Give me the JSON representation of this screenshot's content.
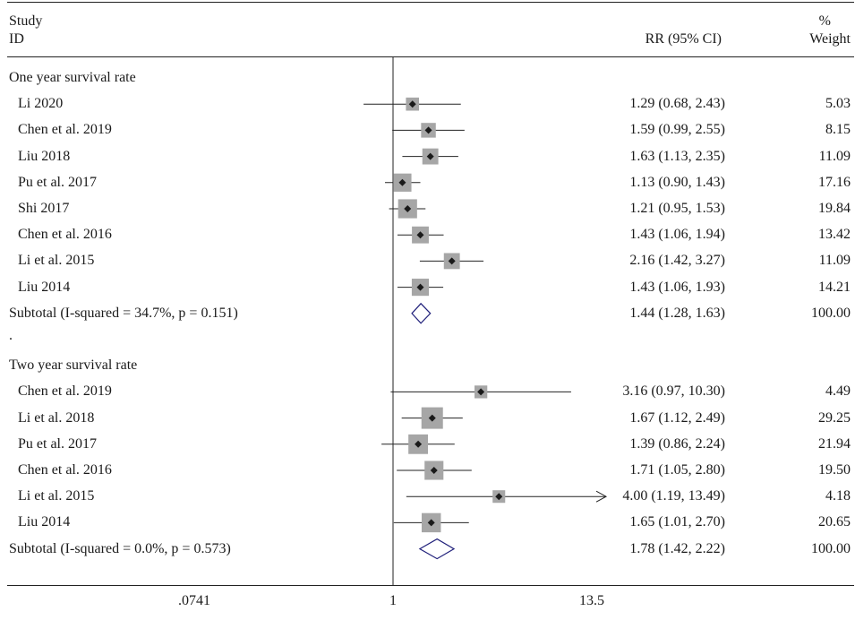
{
  "header": {
    "study_line1": "Study",
    "study_line2": "ID",
    "rr_label": "RR (95% CI)",
    "weight_line1": "%",
    "weight_line2": "Weight"
  },
  "chart_data": {
    "type": "forest",
    "scale": "log",
    "null_value": 1,
    "x_ticks": [
      {
        "value": 0.0741,
        "label": ".0741"
      },
      {
        "value": 1,
        "label": "1"
      },
      {
        "value": 13.5,
        "label": "13.5"
      }
    ],
    "rows": [
      {
        "kind": "group",
        "label": "One year survival rate"
      },
      {
        "kind": "study",
        "label": "Li 2020",
        "rr": 1.29,
        "lo": 0.68,
        "hi": 2.43,
        "rr_text": "1.29 (0.68, 2.43)",
        "weight": "5.03"
      },
      {
        "kind": "study",
        "label": "Chen et al. 2019",
        "rr": 1.59,
        "lo": 0.99,
        "hi": 2.55,
        "rr_text": "1.59 (0.99, 2.55)",
        "weight": "8.15"
      },
      {
        "kind": "study",
        "label": "Liu 2018",
        "rr": 1.63,
        "lo": 1.13,
        "hi": 2.35,
        "rr_text": "1.63 (1.13, 2.35)",
        "weight": "11.09"
      },
      {
        "kind": "study",
        "label": "Pu et al. 2017",
        "rr": 1.13,
        "lo": 0.9,
        "hi": 1.43,
        "rr_text": "1.13 (0.90, 1.43)",
        "weight": "17.16"
      },
      {
        "kind": "study",
        "label": "Shi 2017",
        "rr": 1.21,
        "lo": 0.95,
        "hi": 1.53,
        "rr_text": "1.21 (0.95, 1.53)",
        "weight": "19.84"
      },
      {
        "kind": "study",
        "label": "Chen et al. 2016",
        "rr": 1.43,
        "lo": 1.06,
        "hi": 1.94,
        "rr_text": "1.43 (1.06, 1.94)",
        "weight": "13.42"
      },
      {
        "kind": "study",
        "label": "Li et al. 2015",
        "rr": 2.16,
        "lo": 1.42,
        "hi": 3.27,
        "rr_text": "2.16 (1.42, 3.27)",
        "weight": "11.09"
      },
      {
        "kind": "study",
        "label": "Liu 2014",
        "rr": 1.43,
        "lo": 1.06,
        "hi": 1.93,
        "rr_text": "1.43 (1.06, 1.93)",
        "weight": "14.21"
      },
      {
        "kind": "subtotal",
        "label": "Subtotal (I-squared = 34.7%, p = 0.151)",
        "rr": 1.44,
        "lo": 1.28,
        "hi": 1.63,
        "rr_text": "1.44 (1.28, 1.63)",
        "weight": "100.00"
      },
      {
        "kind": "spacer",
        "label": "."
      },
      {
        "kind": "group",
        "label": "Two year survival rate"
      },
      {
        "kind": "study",
        "label": "Chen et al. 2019",
        "rr": 3.16,
        "lo": 0.97,
        "hi": 10.3,
        "rr_text": "3.16 (0.97, 10.30)",
        "weight": "4.49"
      },
      {
        "kind": "study",
        "label": "Li et al. 2018",
        "rr": 1.67,
        "lo": 1.12,
        "hi": 2.49,
        "rr_text": "1.67 (1.12, 2.49)",
        "weight": "29.25"
      },
      {
        "kind": "study",
        "label": "Pu et al. 2017",
        "rr": 1.39,
        "lo": 0.86,
        "hi": 2.24,
        "rr_text": "1.39 (0.86, 2.24)",
        "weight": "21.94"
      },
      {
        "kind": "study",
        "label": "Chen et al. 2016",
        "rr": 1.71,
        "lo": 1.05,
        "hi": 2.8,
        "rr_text": "1.71 (1.05, 2.80)",
        "weight": "19.50"
      },
      {
        "kind": "study",
        "label": "Li et al. 2015",
        "rr": 4.0,
        "lo": 1.19,
        "hi": 13.49,
        "rr_text": "4.00 (1.19, 13.49)",
        "weight": "4.18",
        "arrow_right": true
      },
      {
        "kind": "study",
        "label": "Liu 2014",
        "rr": 1.65,
        "lo": 1.01,
        "hi": 2.7,
        "rr_text": "1.65 (1.01, 2.70)",
        "weight": "20.65"
      },
      {
        "kind": "subtotal",
        "label": "Subtotal (I-squared = 0.0%, p = 0.573)",
        "rr": 1.78,
        "lo": 1.42,
        "hi": 2.22,
        "rr_text": "1.78 (1.42, 2.22)",
        "weight": "100.00"
      }
    ],
    "colors": {
      "box": "#a6a6a6",
      "point": "#1a1a1a",
      "diamond": "#1f1f7a",
      "line": "#222222"
    }
  }
}
